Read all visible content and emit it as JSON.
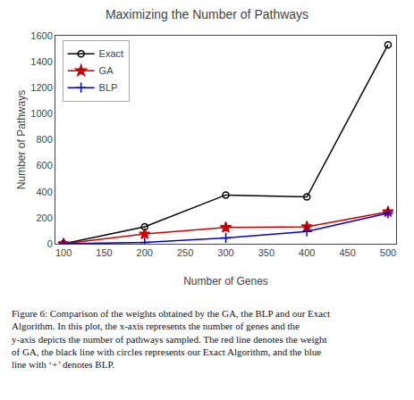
{
  "chart_data": {
    "type": "line",
    "title": "Maximizing the Number of Pathways",
    "x_label": "Number of Genes",
    "y_label": "Number of Pathways",
    "x": [
      100,
      200,
      300,
      400,
      500
    ],
    "series": [
      {
        "name": "Exact",
        "color": "#000000",
        "marker": "circle",
        "values": [
          0,
          130,
          375,
          360,
          1530
        ]
      },
      {
        "name": "GA",
        "color": "#cc0000",
        "marker": "star",
        "values": [
          0,
          75,
          125,
          130,
          245
        ]
      },
      {
        "name": "BLP",
        "color": "#0000cc",
        "marker": "plus",
        "values": [
          0,
          10,
          45,
          95,
          235
        ]
      }
    ],
    "xlim": [
      90,
      510
    ],
    "ylim": [
      0,
      1600
    ],
    "xticks": [
      100,
      150,
      200,
      250,
      300,
      350,
      400,
      450,
      500
    ],
    "yticks": [
      0,
      200,
      400,
      600,
      800,
      1000,
      1200,
      1400,
      1600
    ],
    "grid": false,
    "legend": "upper left",
    "annotations": [
      "Figure 6: Comparison of the weights obtained by the GA, the BLP and our Exact Algorithm. In this plot, the x-axis represents the number of genes and the y-axis depicts the number of pathways sampled. The red line denotes the weight of GA, the black line with circles represents our Exact Algorithm, and the blue line with ‘+’ denotes BLP."
    ]
  }
}
